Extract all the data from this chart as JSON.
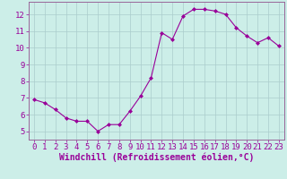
{
  "x": [
    0,
    1,
    2,
    3,
    4,
    5,
    6,
    7,
    8,
    9,
    10,
    11,
    12,
    13,
    14,
    15,
    16,
    17,
    18,
    19,
    20,
    21,
    22,
    23
  ],
  "y": [
    6.9,
    6.7,
    6.3,
    5.8,
    5.6,
    5.6,
    5.0,
    5.4,
    5.4,
    6.2,
    7.1,
    8.2,
    10.9,
    10.5,
    11.9,
    12.3,
    12.3,
    12.2,
    12.0,
    11.2,
    10.7,
    10.3,
    10.6,
    10.1
  ],
  "line_color": "#990099",
  "marker": "D",
  "marker_size": 2.0,
  "background_color": "#cceee8",
  "grid_color": "#aacccc",
  "xlabel": "Windchill (Refroidissement éolien,°C)",
  "xlabel_color": "#990099",
  "tick_color": "#990099",
  "spine_color": "#996699",
  "xlim": [
    -0.5,
    23.5
  ],
  "ylim": [
    4.5,
    12.75
  ],
  "yticks": [
    5,
    6,
    7,
    8,
    9,
    10,
    11,
    12
  ],
  "xticks": [
    0,
    1,
    2,
    3,
    4,
    5,
    6,
    7,
    8,
    9,
    10,
    11,
    12,
    13,
    14,
    15,
    16,
    17,
    18,
    19,
    20,
    21,
    22,
    23
  ],
  "font_size": 6.5,
  "xlabel_fontsize": 7.0,
  "linewidth": 0.8
}
